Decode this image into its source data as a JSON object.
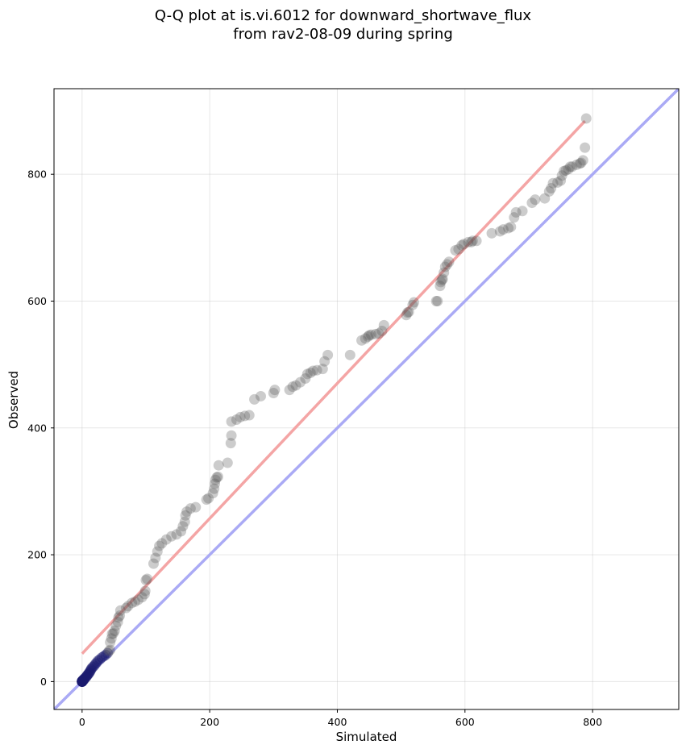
{
  "chart_data": {
    "type": "scatter",
    "title": "Q-Q plot at is.vi.6012 for downward_shortwave_flux\nfrom rav2-08-09 during spring",
    "xlabel": "Simulated",
    "ylabel": "Observed",
    "xlim": [
      -44,
      935
    ],
    "ylim": [
      -44,
      935
    ],
    "xticks": [
      0,
      200,
      400,
      600,
      800
    ],
    "yticks": [
      0,
      200,
      400,
      600,
      800
    ],
    "grid": true,
    "colors": {
      "points": "#555555",
      "fit_line": "#f4a5a5",
      "identity_line": "#aaaaf5",
      "low_points": "#1a1a6e"
    },
    "identity_line": {
      "slope": 1,
      "intercept": 0
    },
    "fit_line": {
      "x": [
        0,
        788
      ],
      "y": [
        44,
        884
      ]
    },
    "points": [
      [
        0,
        0
      ],
      [
        0,
        0
      ],
      [
        0,
        0
      ],
      [
        0,
        0
      ],
      [
        0,
        0
      ],
      [
        0,
        0
      ],
      [
        0,
        0
      ],
      [
        0,
        0
      ],
      [
        0,
        0
      ],
      [
        0,
        0
      ],
      [
        0,
        1
      ],
      [
        1,
        1
      ],
      [
        1,
        2
      ],
      [
        2,
        2
      ],
      [
        2,
        3
      ],
      [
        3,
        3
      ],
      [
        3,
        4
      ],
      [
        4,
        5
      ],
      [
        5,
        6
      ],
      [
        6,
        7
      ],
      [
        7,
        8
      ],
      [
        8,
        10
      ],
      [
        9,
        11
      ],
      [
        10,
        12
      ],
      [
        11,
        14
      ],
      [
        12,
        15
      ],
      [
        13,
        17
      ],
      [
        14,
        19
      ],
      [
        15,
        21
      ],
      [
        17,
        23
      ],
      [
        19,
        25
      ],
      [
        21,
        28
      ],
      [
        23,
        30
      ],
      [
        25,
        33
      ],
      [
        28,
        35
      ],
      [
        31,
        38
      ],
      [
        34,
        40
      ],
      [
        37,
        42
      ],
      [
        40,
        45
      ],
      [
        42,
        48
      ],
      [
        44,
        50
      ],
      [
        44,
        62
      ],
      [
        46,
        68
      ],
      [
        47,
        75
      ],
      [
        49,
        76
      ],
      [
        51,
        80
      ],
      [
        53,
        88
      ],
      [
        56,
        94
      ],
      [
        57,
        101
      ],
      [
        59,
        104
      ],
      [
        60,
        112
      ],
      [
        69,
        116
      ],
      [
        72,
        119
      ],
      [
        78,
        124
      ],
      [
        83,
        126
      ],
      [
        88,
        129
      ],
      [
        94,
        133
      ],
      [
        98,
        138
      ],
      [
        99,
        143
      ],
      [
        100,
        160
      ],
      [
        102,
        162
      ],
      [
        112,
        186
      ],
      [
        115,
        195
      ],
      [
        118,
        205
      ],
      [
        121,
        214
      ],
      [
        125,
        218
      ],
      [
        132,
        224
      ],
      [
        140,
        229
      ],
      [
        148,
        232
      ],
      [
        155,
        237
      ],
      [
        158,
        245
      ],
      [
        161,
        252
      ],
      [
        162,
        262
      ],
      [
        164,
        268
      ],
      [
        170,
        273
      ],
      [
        178,
        275
      ],
      [
        195,
        287
      ],
      [
        198,
        289
      ],
      [
        205,
        297
      ],
      [
        207,
        304
      ],
      [
        208,
        312
      ],
      [
        209,
        318
      ],
      [
        211,
        322
      ],
      [
        213,
        323
      ],
      [
        214,
        341
      ],
      [
        228,
        345
      ],
      [
        233,
        376
      ],
      [
        234,
        388
      ],
      [
        234,
        410
      ],
      [
        242,
        413
      ],
      [
        248,
        417
      ],
      [
        255,
        419
      ],
      [
        262,
        420
      ],
      [
        270,
        445
      ],
      [
        280,
        450
      ],
      [
        300,
        455
      ],
      [
        302,
        460
      ],
      [
        325,
        460
      ],
      [
        330,
        465
      ],
      [
        335,
        467
      ],
      [
        342,
        472
      ],
      [
        350,
        478
      ],
      [
        353,
        485
      ],
      [
        358,
        487
      ],
      [
        362,
        490
      ],
      [
        368,
        491
      ],
      [
        377,
        493
      ],
      [
        380,
        505
      ],
      [
        385,
        515
      ],
      [
        420,
        515
      ],
      [
        438,
        538
      ],
      [
        444,
        541
      ],
      [
        448,
        544
      ],
      [
        450,
        546
      ],
      [
        453,
        547
      ],
      [
        460,
        548
      ],
      [
        465,
        549
      ],
      [
        470,
        553
      ],
      [
        473,
        562
      ],
      [
        508,
        578
      ],
      [
        510,
        582
      ],
      [
        512,
        583
      ],
      [
        518,
        594
      ],
      [
        520,
        598
      ],
      [
        555,
        600
      ],
      [
        557,
        600
      ],
      [
        561,
        624
      ],
      [
        562,
        630
      ],
      [
        564,
        633
      ],
      [
        565,
        635
      ],
      [
        567,
        645
      ],
      [
        569,
        654
      ],
      [
        572,
        658
      ],
      [
        575,
        662
      ],
      [
        585,
        680
      ],
      [
        590,
        682
      ],
      [
        595,
        688
      ],
      [
        598,
        690
      ],
      [
        605,
        693
      ],
      [
        610,
        693
      ],
      [
        612,
        695
      ],
      [
        618,
        695
      ],
      [
        642,
        707
      ],
      [
        655,
        710
      ],
      [
        660,
        713
      ],
      [
        668,
        715
      ],
      [
        672,
        717
      ],
      [
        677,
        732
      ],
      [
        680,
        740
      ],
      [
        690,
        742
      ],
      [
        705,
        755
      ],
      [
        710,
        760
      ],
      [
        725,
        762
      ],
      [
        732,
        773
      ],
      [
        735,
        778
      ],
      [
        738,
        786
      ],
      [
        745,
        787
      ],
      [
        750,
        790
      ],
      [
        752,
        798
      ],
      [
        755,
        805
      ],
      [
        758,
        806
      ],
      [
        762,
        808
      ],
      [
        765,
        812
      ],
      [
        768,
        812
      ],
      [
        775,
        815
      ],
      [
        780,
        817
      ],
      [
        782,
        818
      ],
      [
        785,
        822
      ],
      [
        788,
        842
      ],
      [
        790,
        888
      ]
    ],
    "low_points_max_x": 40
  }
}
